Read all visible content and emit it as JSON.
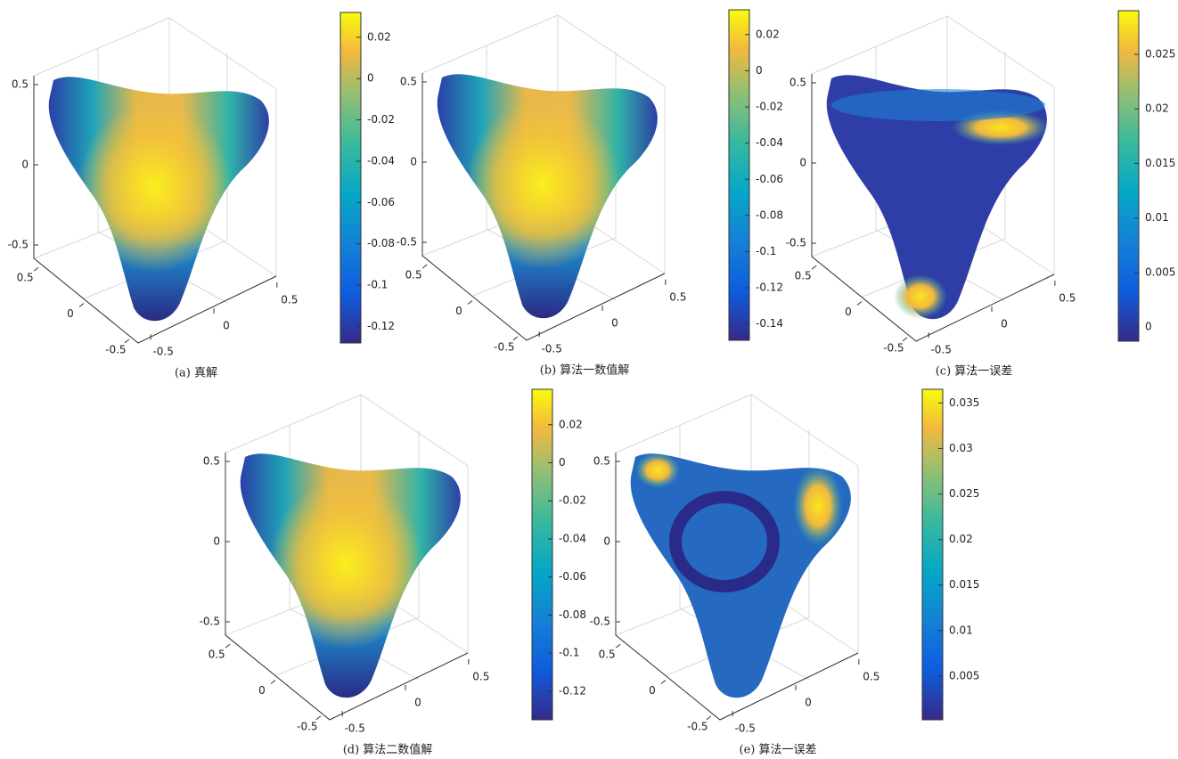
{
  "chart_data": [
    {
      "type": "surface",
      "caption": "(a) 真解",
      "clim": [
        -0.128,
        0.032
      ],
      "cticks": [
        -0.12,
        -0.1,
        -0.08,
        -0.06,
        -0.04,
        -0.02,
        0,
        0.02
      ],
      "xlim": [
        -0.6,
        0.6
      ],
      "xticks": [
        -0.5,
        0,
        0.5
      ],
      "ylim": [
        -0.6,
        0.6
      ],
      "yticks": [
        -0.5,
        0,
        0.5
      ],
      "zlim": [
        -0.6,
        0.6
      ],
      "zticks": [
        -0.5,
        0,
        0.5
      ]
    },
    {
      "type": "surface",
      "caption": "(b) 算法一数值解",
      "clim": [
        -0.149,
        0.0337
      ],
      "cticks": [
        -0.14,
        -0.12,
        -0.1,
        -0.08,
        -0.06,
        -0.04,
        -0.02,
        0,
        0.02
      ],
      "xlim": [
        -0.6,
        0.6
      ],
      "xticks": [
        -0.5,
        0,
        0.5
      ],
      "ylim": [
        -0.6,
        0.6
      ],
      "yticks": [
        -0.5,
        0,
        0.5
      ],
      "zlim": [
        -0.6,
        0.6
      ],
      "zticks": [
        -0.5,
        0,
        0.5
      ]
    },
    {
      "type": "surface",
      "caption": "(c) 算法一误差",
      "clim": [
        -0.0013,
        0.029
      ],
      "cticks": [
        0,
        0.005,
        0.01,
        0.015,
        0.02,
        0.025
      ],
      "xlim": [
        -0.6,
        0.6
      ],
      "xticks": [
        -0.5,
        0,
        0.5
      ],
      "ylim": [
        -0.6,
        0.6
      ],
      "yticks": [
        -0.5,
        0,
        0.5
      ],
      "zlim": [
        -0.6,
        0.6
      ],
      "zticks": [
        -0.5,
        0,
        0.5
      ]
    },
    {
      "type": "surface",
      "caption": "(d) 算法二数值解",
      "clim": [
        -0.135,
        0.0386
      ],
      "cticks": [
        -0.12,
        -0.1,
        -0.08,
        -0.06,
        -0.04,
        -0.02,
        0,
        0.02
      ],
      "xlim": [
        -0.6,
        0.6
      ],
      "xticks": [
        -0.5,
        0,
        0.5
      ],
      "ylim": [
        -0.6,
        0.6
      ],
      "yticks": [
        -0.5,
        0,
        0.5
      ],
      "zlim": [
        -0.6,
        0.6
      ],
      "zticks": [
        -0.5,
        0,
        0.5
      ]
    },
    {
      "type": "surface",
      "caption": "(e) 算法一误差",
      "clim": [
        0.0002,
        0.0365
      ],
      "cticks": [
        0.005,
        0.01,
        0.015,
        0.02,
        0.025,
        0.03,
        0.035
      ],
      "xlim": [
        -0.6,
        0.6
      ],
      "xticks": [
        -0.5,
        0,
        0.5
      ],
      "ylim": [
        -0.6,
        0.6
      ],
      "yticks": [
        -0.5,
        0,
        0.5
      ],
      "zlim": [
        -0.6,
        0.6
      ],
      "zticks": [
        -0.5,
        0,
        0.5
      ]
    }
  ]
}
